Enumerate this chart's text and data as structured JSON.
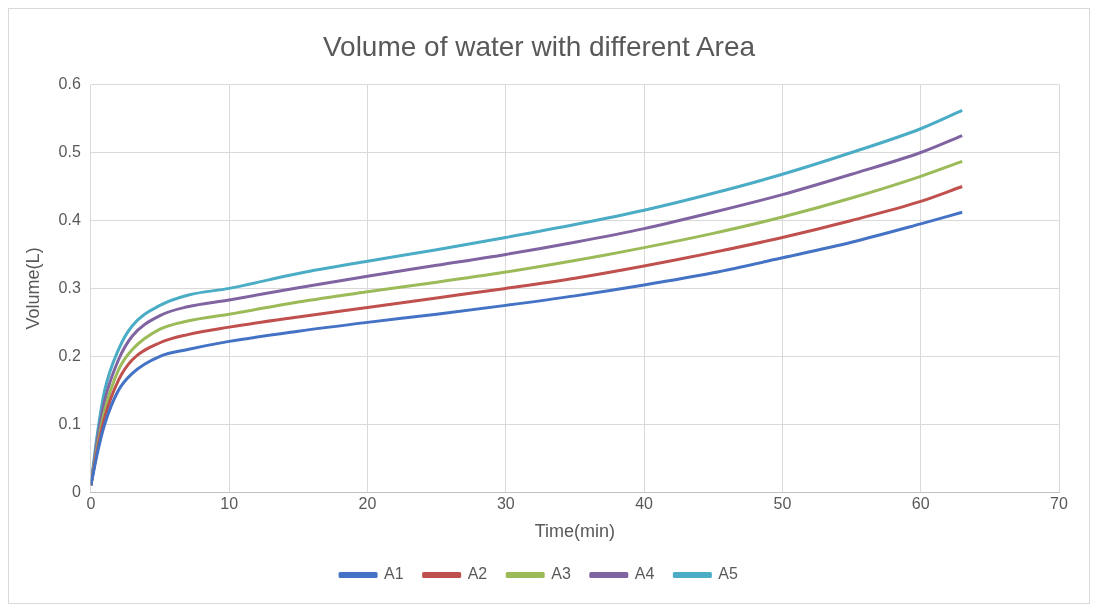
{
  "chart_data": {
    "type": "line",
    "title": "Volume of water with different Area",
    "xlabel": "Time(min)",
    "ylabel": "Volume(L)",
    "x": [
      0,
      0.5,
      1,
      2,
      3,
      5,
      7,
      10,
      15,
      20,
      25,
      30,
      35,
      40,
      45,
      50,
      55,
      60,
      63
    ],
    "xlim": [
      0,
      70
    ],
    "xticks": [
      0,
      10,
      20,
      30,
      40,
      50,
      60,
      70
    ],
    "ylim": [
      0,
      0.6
    ],
    "yticks": [
      0,
      0.1,
      0.2,
      0.3,
      0.4,
      0.5,
      0.6
    ],
    "grid": true,
    "legend": "bottom",
    "marker": "none",
    "line_style": "solid",
    "series": [
      {
        "name": "A1",
        "color": "#4472c4",
        "values": [
          0.01,
          0.06,
          0.1,
          0.15,
          0.175,
          0.2,
          0.21,
          0.222,
          0.237,
          0.25,
          0.262,
          0.275,
          0.289,
          0.305,
          0.323,
          0.345,
          0.368,
          0.395,
          0.412
        ]
      },
      {
        "name": "A2",
        "color": "#c0504d",
        "values": [
          0.01,
          0.065,
          0.11,
          0.165,
          0.195,
          0.22,
          0.232,
          0.243,
          0.258,
          0.272,
          0.286,
          0.3,
          0.315,
          0.333,
          0.353,
          0.375,
          0.4,
          0.428,
          0.45
        ]
      },
      {
        "name": "A3",
        "color": "#9bbb59",
        "values": [
          0.01,
          0.07,
          0.12,
          0.18,
          0.21,
          0.24,
          0.252,
          0.262,
          0.28,
          0.295,
          0.309,
          0.324,
          0.341,
          0.36,
          0.381,
          0.405,
          0.433,
          0.465,
          0.487
        ]
      },
      {
        "name": "A4",
        "color": "#8064a2",
        "values": [
          0.01,
          0.08,
          0.135,
          0.195,
          0.23,
          0.26,
          0.273,
          0.283,
          0.301,
          0.318,
          0.334,
          0.35,
          0.368,
          0.388,
          0.412,
          0.438,
          0.468,
          0.5,
          0.525
        ]
      },
      {
        "name": "A5",
        "color": "#4bacc6",
        "values": [
          0.01,
          0.09,
          0.15,
          0.21,
          0.245,
          0.275,
          0.29,
          0.3,
          0.322,
          0.34,
          0.357,
          0.375,
          0.394,
          0.415,
          0.44,
          0.468,
          0.5,
          0.535,
          0.562
        ]
      }
    ]
  }
}
